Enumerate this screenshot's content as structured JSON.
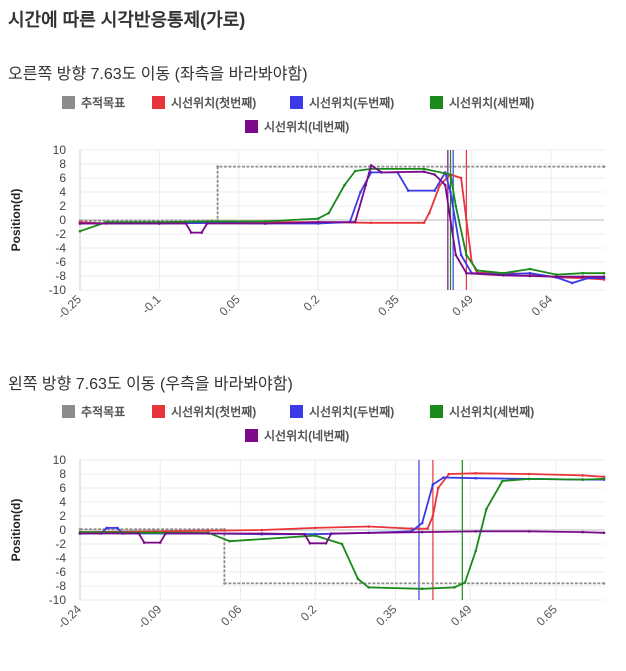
{
  "page": {
    "title": "시간에 따른 시각반응통제(가로)"
  },
  "legend": [
    {
      "name": "추적목표",
      "color": "#8c8c8c"
    },
    {
      "name": "시선위치(첫번째)",
      "color": "#e8343b"
    },
    {
      "name": "시선위치(두번째)",
      "color": "#3a3ae8"
    },
    {
      "name": "시선위치(세번째)",
      "color": "#1a8a1a"
    },
    {
      "name": "시선위치(네번째)",
      "color": "#7a0a8a"
    }
  ],
  "chart_data": [
    {
      "type": "line",
      "title": "오른쪽 방향 7.63도 이동 (좌측을 바라봐야함)",
      "ylabel": "Position(d)",
      "xlabel": "",
      "ylim": [
        -10,
        10
      ],
      "xlim": [
        -0.25,
        0.74
      ],
      "yticks": [
        "10",
        "8",
        "6",
        "4",
        "2",
        "0",
        "-2",
        "-4",
        "-6",
        "-8",
        "-10"
      ],
      "xticks": [
        "-0.25",
        "-0.1",
        "0.05",
        "0.2",
        "0.35",
        "0.49",
        "0.64"
      ],
      "legend_position": "top",
      "series": [
        {
          "name": "추적목표",
          "color": "#8c8c8c",
          "points": [
            [
              -0.25,
              -0.1
            ],
            [
              0.01,
              -0.1
            ],
            [
              0.01,
              7.63
            ],
            [
              0.74,
              7.63
            ]
          ]
        },
        {
          "name": "시선위치(첫번째)",
          "color": "#e8343b",
          "points": [
            [
              -0.25,
              -0.3
            ],
            [
              -0.2,
              -0.5
            ],
            [
              -0.1,
              -0.5
            ],
            [
              0.0,
              -0.4
            ],
            [
              0.1,
              -0.3
            ],
            [
              0.2,
              -0.3
            ],
            [
              0.3,
              -0.4
            ],
            [
              0.4,
              -0.4
            ],
            [
              0.41,
              1.0
            ],
            [
              0.43,
              5.0
            ],
            [
              0.45,
              6.5
            ],
            [
              0.47,
              6.0
            ],
            [
              0.48,
              0
            ],
            [
              0.49,
              -6.0
            ],
            [
              0.5,
              -7.5
            ],
            [
              0.55,
              -7.6
            ],
            [
              0.6,
              -7.7
            ],
            [
              0.65,
              -8.2
            ],
            [
              0.7,
              -8.3
            ],
            [
              0.74,
              -8.5
            ]
          ]
        },
        {
          "name": "시선위치(두번째)",
          "color": "#3a3ae8",
          "points": [
            [
              -0.25,
              -0.5
            ],
            [
              -0.1,
              -0.5
            ],
            [
              0.0,
              -0.4
            ],
            [
              0.1,
              -0.5
            ],
            [
              0.2,
              -0.5
            ],
            [
              0.26,
              -0.3
            ],
            [
              0.28,
              4.0
            ],
            [
              0.3,
              6.8
            ],
            [
              0.35,
              6.8
            ],
            [
              0.37,
              4.2
            ],
            [
              0.42,
              4.2
            ],
            [
              0.44,
              6.8
            ],
            [
              0.45,
              4.0
            ],
            [
              0.47,
              -5.0
            ],
            [
              0.49,
              -7.6
            ],
            [
              0.55,
              -7.8
            ],
            [
              0.6,
              -7.6
            ],
            [
              0.65,
              -8.2
            ],
            [
              0.68,
              -9.0
            ],
            [
              0.71,
              -8.3
            ],
            [
              0.74,
              -8.3
            ]
          ]
        },
        {
          "name": "시선위치(세번째)",
          "color": "#1a8a1a",
          "points": [
            [
              -0.25,
              -1.6
            ],
            [
              -0.2,
              -0.3
            ],
            [
              -0.1,
              -0.3
            ],
            [
              0.0,
              -0.2
            ],
            [
              0.1,
              -0.2
            ],
            [
              0.2,
              0.2
            ],
            [
              0.22,
              1.0
            ],
            [
              0.25,
              5.0
            ],
            [
              0.27,
              7.0
            ],
            [
              0.3,
              7.3
            ],
            [
              0.4,
              7.3
            ],
            [
              0.45,
              6.5
            ],
            [
              0.46,
              2.0
            ],
            [
              0.48,
              -5.0
            ],
            [
              0.5,
              -7.2
            ],
            [
              0.55,
              -7.6
            ],
            [
              0.6,
              -7.0
            ],
            [
              0.65,
              -7.8
            ],
            [
              0.7,
              -7.6
            ],
            [
              0.74,
              -7.6
            ]
          ]
        },
        {
          "name": "시선위치(네번째)",
          "color": "#7a0a8a",
          "points": [
            [
              -0.25,
              -0.5
            ],
            [
              -0.1,
              -0.5
            ],
            [
              -0.05,
              -0.5
            ],
            [
              -0.04,
              -1.8
            ],
            [
              -0.02,
              -1.8
            ],
            [
              -0.01,
              -0.5
            ],
            [
              0.1,
              -0.5
            ],
            [
              0.2,
              -0.3
            ],
            [
              0.27,
              -0.3
            ],
            [
              0.29,
              5.0
            ],
            [
              0.3,
              7.8
            ],
            [
              0.32,
              6.8
            ],
            [
              0.4,
              6.9
            ],
            [
              0.42,
              6.5
            ],
            [
              0.44,
              5.0
            ],
            [
              0.46,
              -5.0
            ],
            [
              0.48,
              -7.6
            ],
            [
              0.55,
              -7.9
            ],
            [
              0.6,
              -8.0
            ],
            [
              0.65,
              -8.1
            ],
            [
              0.7,
              -8.1
            ],
            [
              0.74,
              -8.1
            ]
          ]
        }
      ],
      "vlines": [
        {
          "x": 0.445,
          "color": "#7a0a8a"
        },
        {
          "x": 0.45,
          "color": "#1a8a1a"
        },
        {
          "x": 0.455,
          "color": "#3a3ae8"
        },
        {
          "x": 0.48,
          "color": "#e8343b"
        }
      ]
    },
    {
      "type": "line",
      "title": "왼쪽 방향 7.63도 이동 (우측을 바라봐야함)",
      "ylabel": "Position(d)",
      "xlabel": "",
      "ylim": [
        -10,
        10
      ],
      "xlim": [
        -0.24,
        0.74
      ],
      "yticks": [
        "10",
        "8",
        "6",
        "4",
        "2",
        "0",
        "-2",
        "-4",
        "-6",
        "-8",
        "-10"
      ],
      "xticks": [
        "-0.24",
        "-0.09",
        "0.06",
        "0.2",
        "0.35",
        "0.49",
        "0.65"
      ],
      "legend_position": "top",
      "series": [
        {
          "name": "추적목표",
          "color": "#8c8c8c",
          "points": [
            [
              -0.24,
              0.1
            ],
            [
              0.03,
              0.1
            ],
            [
              0.03,
              -7.63
            ],
            [
              0.74,
              -7.63
            ]
          ]
        },
        {
          "name": "시선위치(첫번째)",
          "color": "#e8343b",
          "points": [
            [
              -0.24,
              -0.3
            ],
            [
              -0.1,
              -0.2
            ],
            [
              0.0,
              -0.1
            ],
            [
              0.1,
              0.0
            ],
            [
              0.2,
              0.3
            ],
            [
              0.3,
              0.5
            ],
            [
              0.38,
              0.2
            ],
            [
              0.41,
              0.2
            ],
            [
              0.42,
              2.0
            ],
            [
              0.43,
              6.0
            ],
            [
              0.45,
              8.0
            ],
            [
              0.5,
              8.1
            ],
            [
              0.6,
              8.0
            ],
            [
              0.7,
              7.8
            ],
            [
              0.74,
              7.6
            ]
          ]
        },
        {
          "name": "시선위치(두번째)",
          "color": "#3a3ae8",
          "points": [
            [
              -0.24,
              -0.5
            ],
            [
              -0.2,
              -0.5
            ],
            [
              -0.19,
              0.3
            ],
            [
              -0.17,
              0.3
            ],
            [
              -0.16,
              -0.5
            ],
            [
              0.0,
              -0.5
            ],
            [
              0.1,
              -0.6
            ],
            [
              0.2,
              -0.6
            ],
            [
              0.3,
              -0.4
            ],
            [
              0.38,
              -0.2
            ],
            [
              0.4,
              1.0
            ],
            [
              0.42,
              6.5
            ],
            [
              0.44,
              7.5
            ],
            [
              0.5,
              7.4
            ],
            [
              0.6,
              7.3
            ],
            [
              0.7,
              7.2
            ],
            [
              0.74,
              7.2
            ]
          ]
        },
        {
          "name": "시선위치(세번째)",
          "color": "#1a8a1a",
          "points": [
            [
              -0.24,
              -0.3
            ],
            [
              -0.1,
              -0.4
            ],
            [
              0.0,
              -0.4
            ],
            [
              0.04,
              -1.6
            ],
            [
              0.2,
              -0.8
            ],
            [
              0.25,
              -2.0
            ],
            [
              0.28,
              -7.0
            ],
            [
              0.3,
              -8.2
            ],
            [
              0.4,
              -8.4
            ],
            [
              0.46,
              -8.2
            ],
            [
              0.48,
              -7.5
            ],
            [
              0.5,
              -3.0
            ],
            [
              0.52,
              3.0
            ],
            [
              0.55,
              7.0
            ],
            [
              0.6,
              7.3
            ],
            [
              0.7,
              7.2
            ],
            [
              0.74,
              7.3
            ]
          ]
        },
        {
          "name": "시선위치(네번째)",
          "color": "#7a0a8a",
          "points": [
            [
              -0.24,
              -0.5
            ],
            [
              -0.13,
              -0.5
            ],
            [
              -0.12,
              -1.8
            ],
            [
              -0.09,
              -1.8
            ],
            [
              -0.08,
              -0.5
            ],
            [
              0.1,
              -0.5
            ],
            [
              0.18,
              -0.6
            ],
            [
              0.19,
              -1.9
            ],
            [
              0.22,
              -1.9
            ],
            [
              0.23,
              -0.5
            ],
            [
              0.4,
              -0.3
            ],
            [
              0.5,
              -0.2
            ],
            [
              0.6,
              -0.2
            ],
            [
              0.7,
              -0.3
            ],
            [
              0.74,
              -0.4
            ]
          ]
        }
      ],
      "vlines": [
        {
          "x": 0.394,
          "color": "#3a3ae8"
        },
        {
          "x": 0.42,
          "color": "#e8343b"
        },
        {
          "x": 0.475,
          "color": "#1a8a1a"
        }
      ]
    }
  ]
}
